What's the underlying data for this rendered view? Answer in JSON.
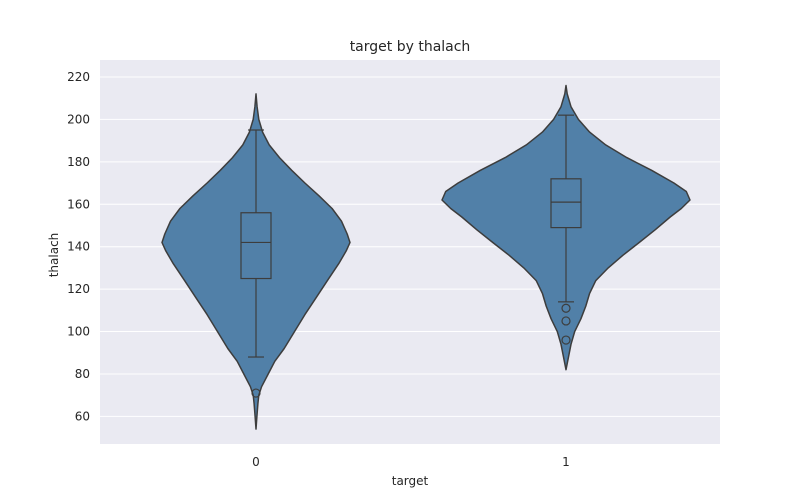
{
  "chart_data": {
    "type": "violin",
    "title": "target by thalach",
    "xlabel": "target",
    "ylabel": "thalach",
    "categories": [
      "0",
      "1"
    ],
    "ylim": [
      47,
      228
    ],
    "yticks": [
      60,
      80,
      100,
      120,
      140,
      160,
      180,
      200,
      220
    ],
    "grid": true,
    "colors": {
      "plot_background": "#eaeaf2",
      "grid": "#ffffff",
      "violin_fill": "#5180a8",
      "edge": "#3d3d3d"
    },
    "violins": [
      {
        "category": "0",
        "kde_range": [
          54,
          212
        ],
        "density_profile": [
          [
            54,
            0.0
          ],
          [
            60,
            0.01
          ],
          [
            66,
            0.02
          ],
          [
            70,
            0.03
          ],
          [
            74,
            0.06
          ],
          [
            80,
            0.13
          ],
          [
            86,
            0.2
          ],
          [
            92,
            0.3
          ],
          [
            100,
            0.41
          ],
          [
            108,
            0.52
          ],
          [
            116,
            0.64
          ],
          [
            124,
            0.76
          ],
          [
            132,
            0.88
          ],
          [
            138,
            0.96
          ],
          [
            142,
            1.0
          ],
          [
            146,
            0.97
          ],
          [
            152,
            0.91
          ],
          [
            158,
            0.81
          ],
          [
            164,
            0.67
          ],
          [
            170,
            0.52
          ],
          [
            176,
            0.38
          ],
          [
            182,
            0.25
          ],
          [
            188,
            0.14
          ],
          [
            194,
            0.07
          ],
          [
            200,
            0.03
          ],
          [
            206,
            0.012
          ],
          [
            212,
            0.0
          ]
        ],
        "box": {
          "q1": 125,
          "median": 142,
          "q3": 156,
          "whisker_low": 88,
          "whisker_high": 195
        },
        "outliers": [
          71
        ]
      },
      {
        "category": "1",
        "kde_range": [
          82,
          216
        ],
        "density_profile": [
          [
            82,
            0.0
          ],
          [
            88,
            0.02
          ],
          [
            94,
            0.04
          ],
          [
            100,
            0.07
          ],
          [
            106,
            0.12
          ],
          [
            112,
            0.16
          ],
          [
            118,
            0.19
          ],
          [
            124,
            0.24
          ],
          [
            130,
            0.34
          ],
          [
            136,
            0.46
          ],
          [
            142,
            0.59
          ],
          [
            148,
            0.72
          ],
          [
            154,
            0.84
          ],
          [
            158,
            0.93
          ],
          [
            162,
            1.0
          ],
          [
            166,
            0.97
          ],
          [
            170,
            0.87
          ],
          [
            176,
            0.69
          ],
          [
            182,
            0.49
          ],
          [
            188,
            0.32
          ],
          [
            194,
            0.19
          ],
          [
            200,
            0.1
          ],
          [
            206,
            0.04
          ],
          [
            212,
            0.01
          ],
          [
            216,
            0.0
          ]
        ],
        "box": {
          "q1": 149,
          "median": 161,
          "q3": 172,
          "whisker_low": 114,
          "whisker_high": 202
        },
        "outliers": [
          96,
          105,
          111
        ]
      }
    ]
  }
}
